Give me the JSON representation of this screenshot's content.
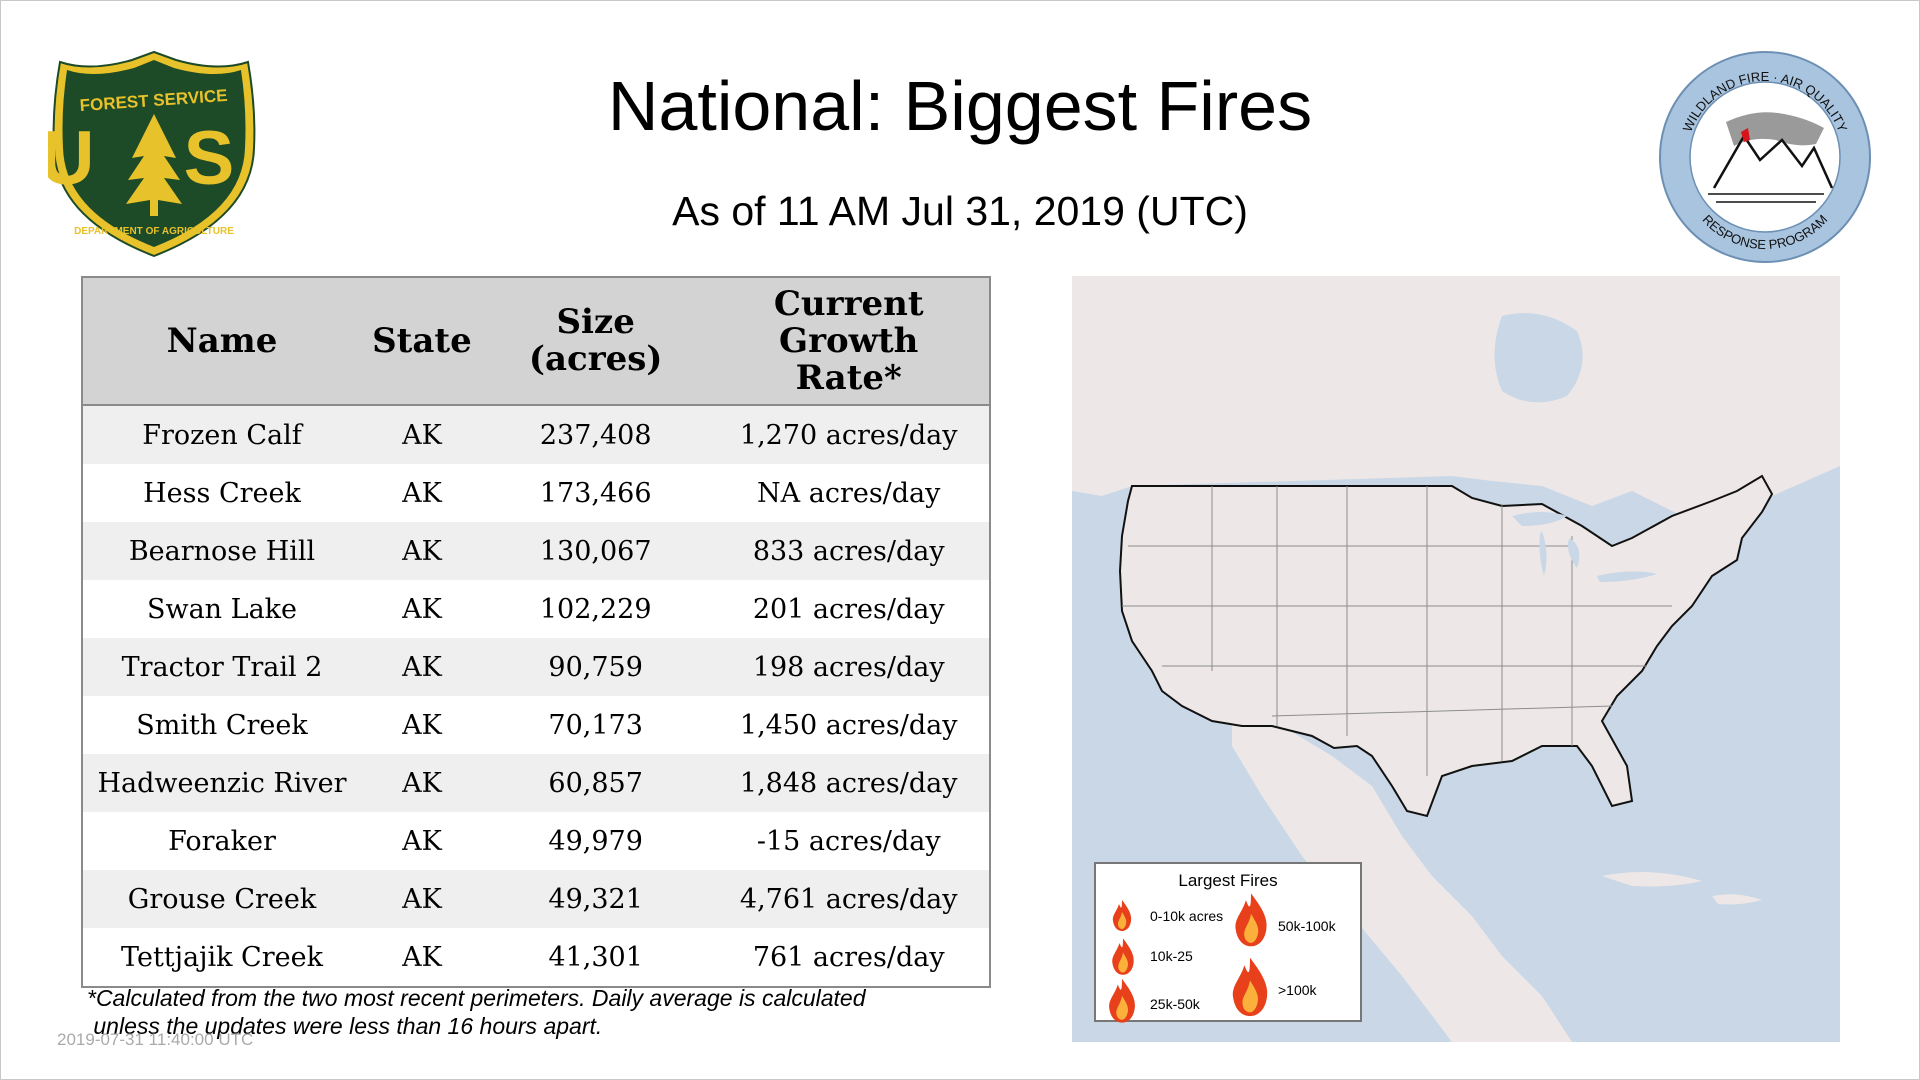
{
  "title": "National: Biggest Fires",
  "subtitle": "As of 11 AM Jul 31, 2019 (UTC)",
  "logos": {
    "forest_service": {
      "top": "FOREST SERVICE",
      "letters": "U S",
      "bottom": "DEPARTMENT OF AGRICULTURE"
    },
    "wfarp": {
      "top": "WILDLAND FIRE · AIR QUALITY",
      "bottom": "RESPONSE PROGRAM"
    }
  },
  "table": {
    "headers": {
      "name": "Name",
      "state": "State",
      "size": "Size (acres)",
      "growth": "Current Growth Rate*"
    },
    "rows": [
      {
        "name": "Frozen Calf",
        "state": "AK",
        "size": "237,408",
        "growth": "1,270 acres/day"
      },
      {
        "name": "Hess Creek",
        "state": "AK",
        "size": "173,466",
        "growth": "NA acres/day"
      },
      {
        "name": "Bearnose Hill",
        "state": "AK",
        "size": "130,067",
        "growth": "833 acres/day"
      },
      {
        "name": "Swan Lake",
        "state": "AK",
        "size": "102,229",
        "growth": "201 acres/day"
      },
      {
        "name": "Tractor Trail 2",
        "state": "AK",
        "size": "90,759",
        "growth": "198 acres/day"
      },
      {
        "name": "Smith Creek",
        "state": "AK",
        "size": "70,173",
        "growth": "1,450 acres/day"
      },
      {
        "name": "Hadweenzic River",
        "state": "AK",
        "size": "60,857",
        "growth": "1,848 acres/day"
      },
      {
        "name": "Foraker",
        "state": "AK",
        "size": "49,979",
        "growth": "-15 acres/day"
      },
      {
        "name": "Grouse Creek",
        "state": "AK",
        "size": "49,321",
        "growth": "4,761 acres/day"
      },
      {
        "name": "Tettjajik Creek",
        "state": "AK",
        "size": "41,301",
        "growth": "761 acres/day"
      }
    ]
  },
  "footnote": {
    "line1": "*Calculated from the two most recent perimeters. Daily average is calculated",
    "line2": " unless the updates were less than 16 hours apart."
  },
  "timestamp": "2019-07-31 11:40:00 UTC",
  "legend": {
    "title": "Largest Fires",
    "items": {
      "a": "0-10k acres",
      "b": "10k-25",
      "c": "25k-50k",
      "d": "50k-100k",
      "e": ">100k"
    }
  },
  "colors": {
    "header_bg": "#d3d3d3",
    "row_alt": "#efefef",
    "water": "#c9d7e6",
    "land": "#ede8e7",
    "forest_green": "#1d4a27",
    "forest_gold": "#e8c22a",
    "flame_outer": "#e8401a",
    "flame_inner": "#fbb03b"
  }
}
